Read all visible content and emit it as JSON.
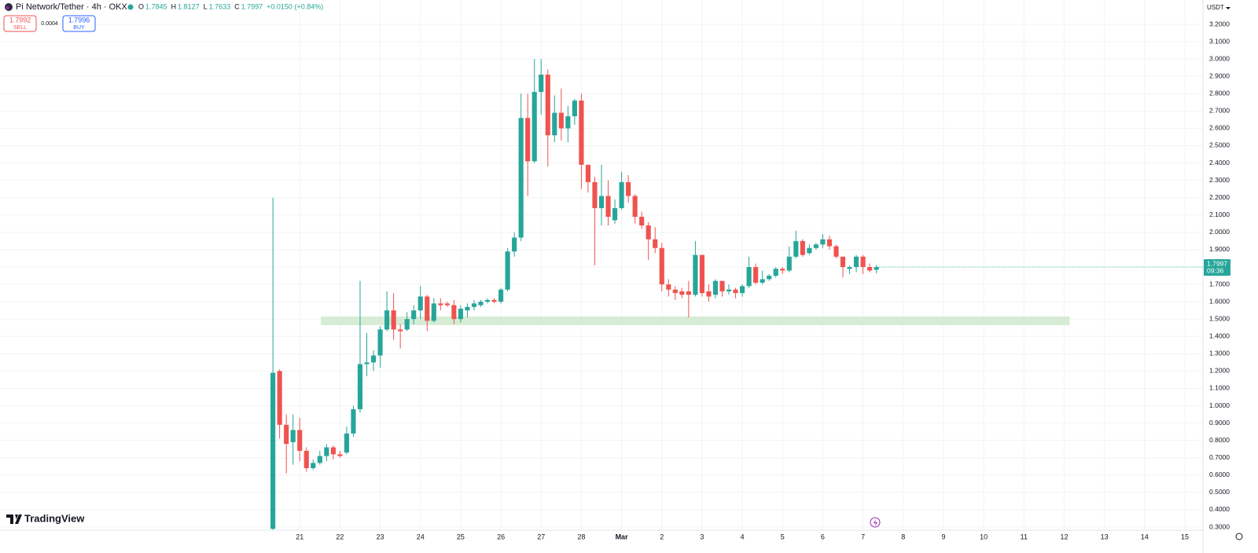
{
  "chart_data": {
    "type": "candlestick",
    "title": "Pi Network/Tether · 4h · OKX",
    "ohlc_labels": [
      "O",
      "H",
      "L",
      "C"
    ],
    "change": "+0.0150 (+0.84%)",
    "sell": {
      "price": 1.7992,
      "label": "SELL"
    },
    "spread": 0.0004,
    "buy": {
      "price": 1.7996,
      "label": "BUY"
    },
    "currency": "USDT",
    "countdown": "09:36",
    "brand": "TradingView",
    "up_color": "#26a69a",
    "down_color": "#ef5350",
    "grid": true,
    "open": [
      0.29,
      1.2,
      0.89,
      0.79,
      0.86,
      0.74,
      0.64,
      0.67,
      0.71,
      0.76,
      0.72,
      0.73,
      0.84,
      0.98,
      1.24,
      1.25,
      1.29,
      1.44,
      1.55,
      1.44,
      1.44,
      1.5,
      1.55,
      1.63,
      1.49,
      1.59,
      1.59,
      1.58,
      1.5,
      1.55,
      1.57,
      1.58,
      1.6,
      1.61,
      1.6,
      1.67,
      1.89,
      1.97,
      2.66,
      2.41,
      2.81,
      2.91,
      2.56,
      2.69,
      2.6,
      2.67,
      2.76,
      2.39,
      2.29,
      2.14,
      2.21,
      2.07,
      2.14,
      2.29,
      2.21,
      2.09,
      2.04,
      1.96,
      1.91,
      1.7,
      1.67,
      1.66,
      1.66,
      1.64,
      1.87,
      1.66,
      1.64,
      1.72,
      1.66,
      1.67,
      1.65,
      1.69,
      1.8,
      1.71,
      1.73,
      1.75,
      1.79,
      1.78,
      1.86,
      1.95,
      1.88,
      1.91,
      1.93,
      1.96,
      1.92,
      1.86,
      1.79,
      1.8,
      1.86,
      1.8,
      1.7845
    ],
    "high": [
      2.2,
      1.21,
      0.95,
      0.95,
      0.93,
      0.76,
      0.69,
      0.74,
      0.78,
      0.77,
      0.74,
      0.88,
      1.0,
      1.72,
      1.42,
      1.32,
      1.46,
      1.66,
      1.65,
      1.47,
      1.54,
      1.58,
      1.69,
      1.64,
      1.62,
      1.62,
      1.6,
      1.61,
      1.58,
      1.59,
      1.61,
      1.61,
      1.62,
      1.62,
      1.68,
      1.91,
      2.0,
      2.8,
      2.8,
      3.0,
      3.0,
      2.94,
      2.79,
      2.83,
      2.73,
      2.77,
      2.8,
      2.39,
      2.32,
      2.39,
      2.3,
      2.19,
      2.35,
      2.33,
      2.22,
      2.12,
      2.06,
      2.03,
      1.94,
      1.73,
      1.69,
      1.68,
      1.72,
      1.95,
      1.87,
      1.7,
      1.73,
      1.72,
      1.7,
      1.68,
      1.7,
      1.86,
      1.82,
      1.78,
      1.76,
      1.8,
      1.8,
      1.92,
      2.01,
      1.96,
      1.93,
      1.94,
      1.99,
      1.98,
      1.93,
      1.86,
      1.81,
      1.87,
      1.87,
      1.82,
      1.8127
    ],
    "low": [
      0.28,
      0.81,
      0.61,
      0.66,
      0.68,
      0.62,
      0.63,
      0.66,
      0.68,
      0.69,
      0.7,
      0.72,
      0.82,
      0.96,
      1.17,
      1.2,
      1.22,
      1.43,
      1.38,
      1.33,
      1.43,
      1.47,
      1.5,
      1.43,
      1.48,
      1.55,
      1.57,
      1.47,
      1.48,
      1.51,
      1.55,
      1.57,
      1.59,
      1.59,
      1.59,
      1.66,
      1.86,
      1.95,
      2.21,
      2.4,
      2.68,
      2.38,
      2.52,
      2.53,
      2.52,
      2.62,
      2.25,
      2.23,
      1.81,
      2.04,
      2.04,
      2.05,
      2.13,
      2.17,
      2.05,
      2.02,
      1.84,
      1.88,
      1.66,
      1.63,
      1.61,
      1.62,
      1.51,
      1.63,
      1.63,
      1.6,
      1.62,
      1.63,
      1.64,
      1.62,
      1.63,
      1.68,
      1.7,
      1.7,
      1.72,
      1.74,
      1.76,
      1.77,
      1.85,
      1.86,
      1.87,
      1.9,
      1.91,
      1.9,
      1.85,
      1.74,
      1.76,
      1.77,
      1.76,
      1.77,
      1.7633
    ],
    "close": [
      1.19,
      0.89,
      0.78,
      0.86,
      0.74,
      0.64,
      0.67,
      0.71,
      0.76,
      0.72,
      0.71,
      0.84,
      0.98,
      1.24,
      1.25,
      1.29,
      1.44,
      1.55,
      1.44,
      1.43,
      1.5,
      1.55,
      1.63,
      1.49,
      1.59,
      1.58,
      1.58,
      1.5,
      1.56,
      1.57,
      1.59,
      1.6,
      1.61,
      1.6,
      1.67,
      1.89,
      1.97,
      2.66,
      2.41,
      2.81,
      2.91,
      2.56,
      2.69,
      2.6,
      2.67,
      2.76,
      2.39,
      2.29,
      2.14,
      2.21,
      2.09,
      2.14,
      2.29,
      2.21,
      2.09,
      2.04,
      1.96,
      1.91,
      1.7,
      1.67,
      1.65,
      1.64,
      1.64,
      1.87,
      1.65,
      1.63,
      1.72,
      1.66,
      1.67,
      1.65,
      1.69,
      1.8,
      1.71,
      1.73,
      1.75,
      1.79,
      1.78,
      1.86,
      1.95,
      1.87,
      1.91,
      1.93,
      1.96,
      1.92,
      1.86,
      1.8,
      1.8,
      1.86,
      1.8,
      1.78,
      1.7997
    ],
    "zone": {
      "x": [
        7.15,
        118.8
      ],
      "y": [
        1.465,
        1.515
      ],
      "color": "#d6ecd4"
    },
    "xlim": [
      -40.7,
      138.7
    ],
    "xticks": [
      {
        "value": 4,
        "label": "21"
      },
      {
        "value": 10,
        "label": "22"
      },
      {
        "value": 16,
        "label": "23"
      },
      {
        "value": 22,
        "label": "24"
      },
      {
        "value": 28,
        "label": "25"
      },
      {
        "value": 34,
        "label": "26"
      },
      {
        "value": 40,
        "label": "27"
      },
      {
        "value": 46,
        "label": "28"
      },
      {
        "value": 52,
        "label": "Mar"
      },
      {
        "value": 58,
        "label": "2"
      },
      {
        "value": 64,
        "label": "3"
      },
      {
        "value": 70,
        "label": "4"
      },
      {
        "value": 76,
        "label": "5"
      },
      {
        "value": 82,
        "label": "6"
      },
      {
        "value": 88,
        "label": "7"
      },
      {
        "value": 94,
        "label": "8"
      },
      {
        "value": 100,
        "label": "9"
      },
      {
        "value": 106,
        "label": "10"
      },
      {
        "value": 112,
        "label": "11"
      },
      {
        "value": 118,
        "label": "12"
      },
      {
        "value": 124,
        "label": "13"
      },
      {
        "value": 130,
        "label": "14"
      },
      {
        "value": 136,
        "label": "15"
      }
    ],
    "ylim": [
      0.282,
      3.3405
    ],
    "yticks": [
      {
        "value": 0.3,
        "label": "0.3000"
      },
      {
        "value": 0.4,
        "label": "0.4000"
      },
      {
        "value": 0.5,
        "label": "0.5000"
      },
      {
        "value": 0.6,
        "label": "0.6000"
      },
      {
        "value": 0.7,
        "label": "0.7000"
      },
      {
        "value": 0.8,
        "label": "0.8000"
      },
      {
        "value": 0.9,
        "label": "0.9000"
      },
      {
        "value": 1.0,
        "label": "1.0000"
      },
      {
        "value": 1.1,
        "label": "1.1000"
      },
      {
        "value": 1.2,
        "label": "1.2000"
      },
      {
        "value": 1.3,
        "label": "1.3000"
      },
      {
        "value": 1.4,
        "label": "1.4000"
      },
      {
        "value": 1.5,
        "label": "1.5000"
      },
      {
        "value": 1.6,
        "label": "1.6000"
      },
      {
        "value": 1.7,
        "label": "1.7000"
      },
      {
        "value": 1.8,
        "label": "1.8000"
      },
      {
        "value": 1.9,
        "label": "1.9000"
      },
      {
        "value": 2.0,
        "label": "2.0000"
      },
      {
        "value": 2.1,
        "label": "2.1000"
      },
      {
        "value": 2.2,
        "label": "2.2000"
      },
      {
        "value": 2.3,
        "label": "2.3000"
      },
      {
        "value": 2.4,
        "label": "2.4000"
      },
      {
        "value": 2.5,
        "label": "2.5000"
      },
      {
        "value": 2.6,
        "label": "2.6000"
      },
      {
        "value": 2.7,
        "label": "2.7000"
      },
      {
        "value": 2.8,
        "label": "2.8000"
      },
      {
        "value": 2.9,
        "label": "2.9000"
      },
      {
        "value": 3.0,
        "label": "3.0000"
      },
      {
        "value": 3.1,
        "label": "3.1000"
      },
      {
        "value": 3.2,
        "label": "3.2000"
      }
    ]
  }
}
